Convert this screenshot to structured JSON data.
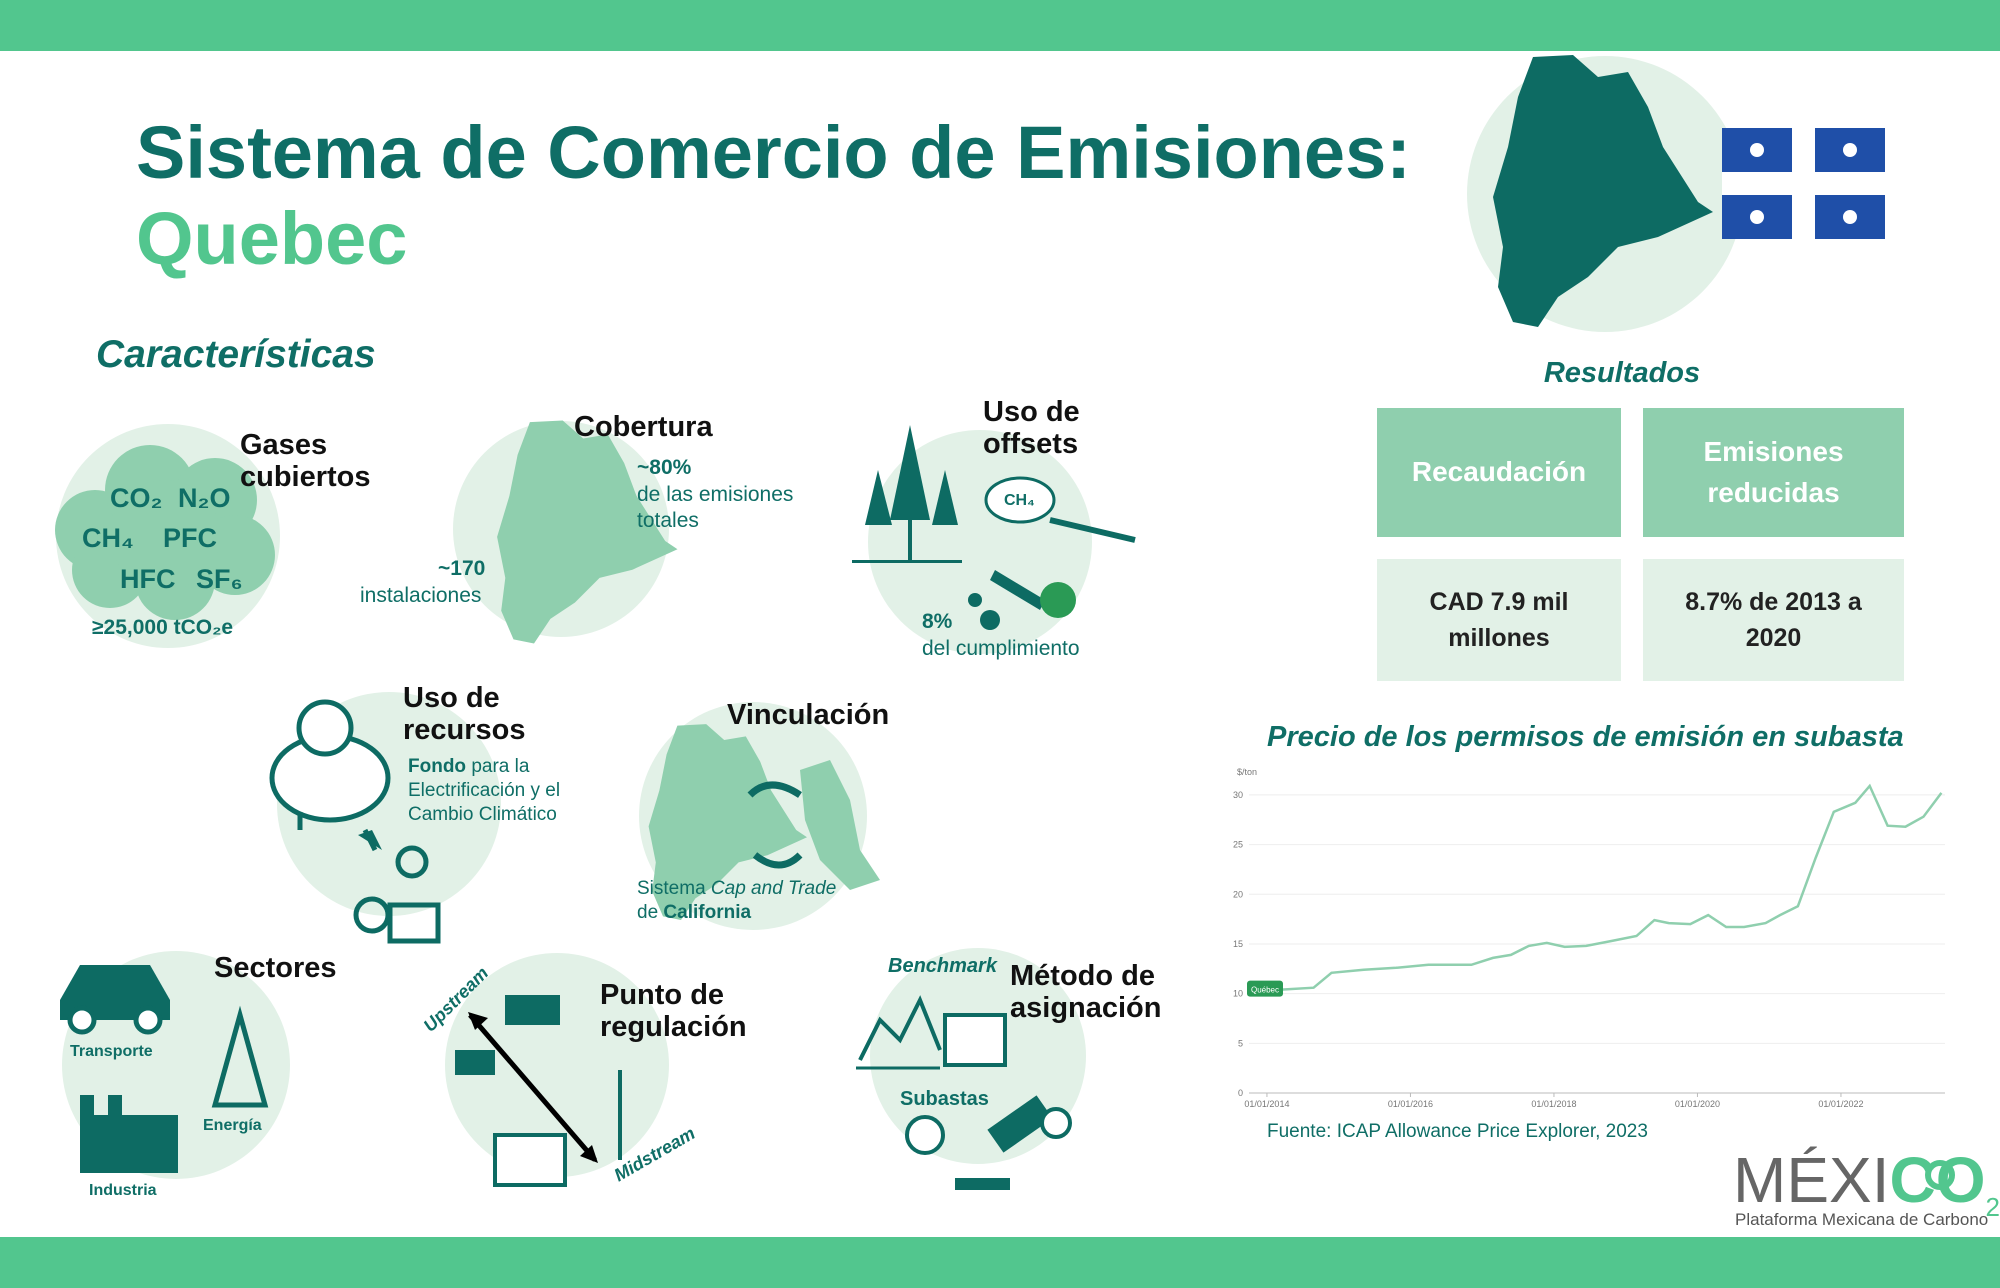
{
  "header": {
    "title": "Sistema de Comercio de Emisiones:",
    "subtitle": "Quebec"
  },
  "features": {
    "heading": "Características",
    "gases": {
      "title": "Gases cubiertos",
      "gases": [
        "CO₂",
        "N₂O",
        "CH₄",
        "PFC",
        "HFC",
        "SF₆"
      ],
      "threshold": "≥25,000 tCO₂e"
    },
    "coverage": {
      "title": "Cobertura",
      "share": "~80%",
      "share_text": "de las emisiones totales",
      "facilities": "~170",
      "facilities_text": "instalaciones"
    },
    "offsets": {
      "title": "Uso de offsets",
      "icon_label": "CH₄",
      "share": "8%",
      "share_text": "del cumplimiento"
    },
    "revenue_use": {
      "title": "Uso de recursos",
      "fund": "Fondo",
      "fund_text": "para la Electrificación y el Cambio Climático"
    },
    "linkage": {
      "title": "Vinculación",
      "text_1": "Sistema",
      "text_2": "Cap and Trade",
      "text_3": "de",
      "text_4": "California"
    },
    "sectors": {
      "title": "Sectores",
      "items": [
        "Transporte",
        "Energía",
        "Industria"
      ]
    },
    "point_of_regulation": {
      "title": "Punto de regulación",
      "upstream": "Upstream",
      "midstream": "Midstream"
    },
    "allocation": {
      "title": "Método de asignación",
      "benchmark": "Benchmark",
      "auctions": "Subastas"
    }
  },
  "results": {
    "title": "Resultados",
    "headers": [
      "Recaudación",
      "Emisiones reducidas"
    ],
    "values": [
      "CAD 7.9 mil millones",
      "8.7% de 2013 a 2020"
    ]
  },
  "chart_data": {
    "type": "line",
    "title": "Precio de los permisos de emisión en subasta",
    "ylabel": "$/ton",
    "source": "Fuente: ICAP Allowance Price Explorer, 2023",
    "x": [
      2014.2,
      2014.65,
      2014.9,
      2015.35,
      2015.8,
      2016.25,
      2016.85,
      2017.15,
      2017.4,
      2017.65,
      2017.9,
      2018.15,
      2018.45,
      2018.8,
      2019.15,
      2019.4,
      2019.6,
      2019.9,
      2020.15,
      2020.4,
      2020.65,
      2020.95,
      2021.15,
      2021.4,
      2021.65,
      2021.9,
      2022.2,
      2022.4,
      2022.65,
      2022.9,
      2023.15,
      2023.4
    ],
    "series": [
      {
        "name": "Québec",
        "color": "#8fcfae",
        "values": [
          10.4,
          10.6,
          12.1,
          12.4,
          12.6,
          12.9,
          12.9,
          13.6,
          13.9,
          14.8,
          15.1,
          14.7,
          14.8,
          15.3,
          15.8,
          17.4,
          17.1,
          17.0,
          17.9,
          16.7,
          16.7,
          17.1,
          17.9,
          18.8,
          23.7,
          28.3,
          29.2,
          30.9,
          26.9,
          26.8,
          27.8,
          30.2
        ]
      }
    ],
    "xlim": [
      2013.75,
      2023.45
    ],
    "ylim": [
      0,
      32
    ],
    "xticks": [
      {
        "value": 2014,
        "label": "01/01/2014"
      },
      {
        "value": 2016,
        "label": "01/01/2016"
      },
      {
        "value": 2018,
        "label": "01/01/2018"
      },
      {
        "value": 2020,
        "label": "01/01/2020"
      },
      {
        "value": 2022,
        "label": "01/01/2022"
      }
    ],
    "yticks": [
      0,
      5,
      10,
      15,
      20,
      25,
      30
    ],
    "grid": true
  },
  "logo": {
    "name_1": "MÉXI",
    "name_2": "CO",
    "name_3": "2",
    "tagline": "Plataforma Mexicana de Carbono"
  }
}
